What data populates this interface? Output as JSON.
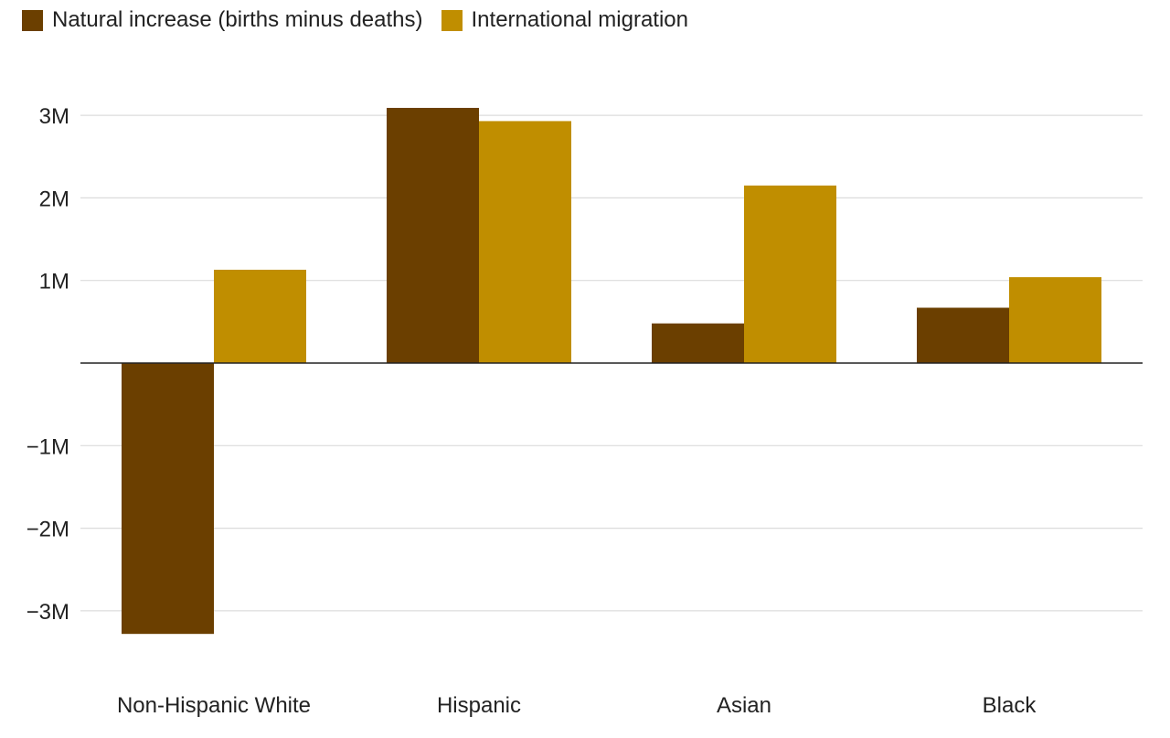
{
  "chart_data": {
    "type": "bar",
    "title": "",
    "xlabel": "",
    "ylabel": "",
    "categories": [
      "Non-Hispanic White",
      "Hispanic",
      "Asian",
      "Black"
    ],
    "series": [
      {
        "name": "Natural increase (births minus deaths)",
        "color": "#6b3f00",
        "values": [
          -3.28,
          3.09,
          0.48,
          0.67
        ]
      },
      {
        "name": "International migration",
        "color": "#c08e00",
        "values": [
          1.13,
          2.93,
          2.15,
          1.04
        ]
      }
    ],
    "ylim": [
      -3.5,
      3.3
    ],
    "yticks": [
      {
        "value": 3,
        "label": "3M"
      },
      {
        "value": 2,
        "label": "2M"
      },
      {
        "value": 1,
        "label": "1M"
      },
      {
        "value": -1,
        "label": "−1M"
      },
      {
        "value": -2,
        "label": "−2M"
      },
      {
        "value": -3,
        "label": "−3M"
      }
    ],
    "grid": true,
    "legend_position": "top-left"
  }
}
